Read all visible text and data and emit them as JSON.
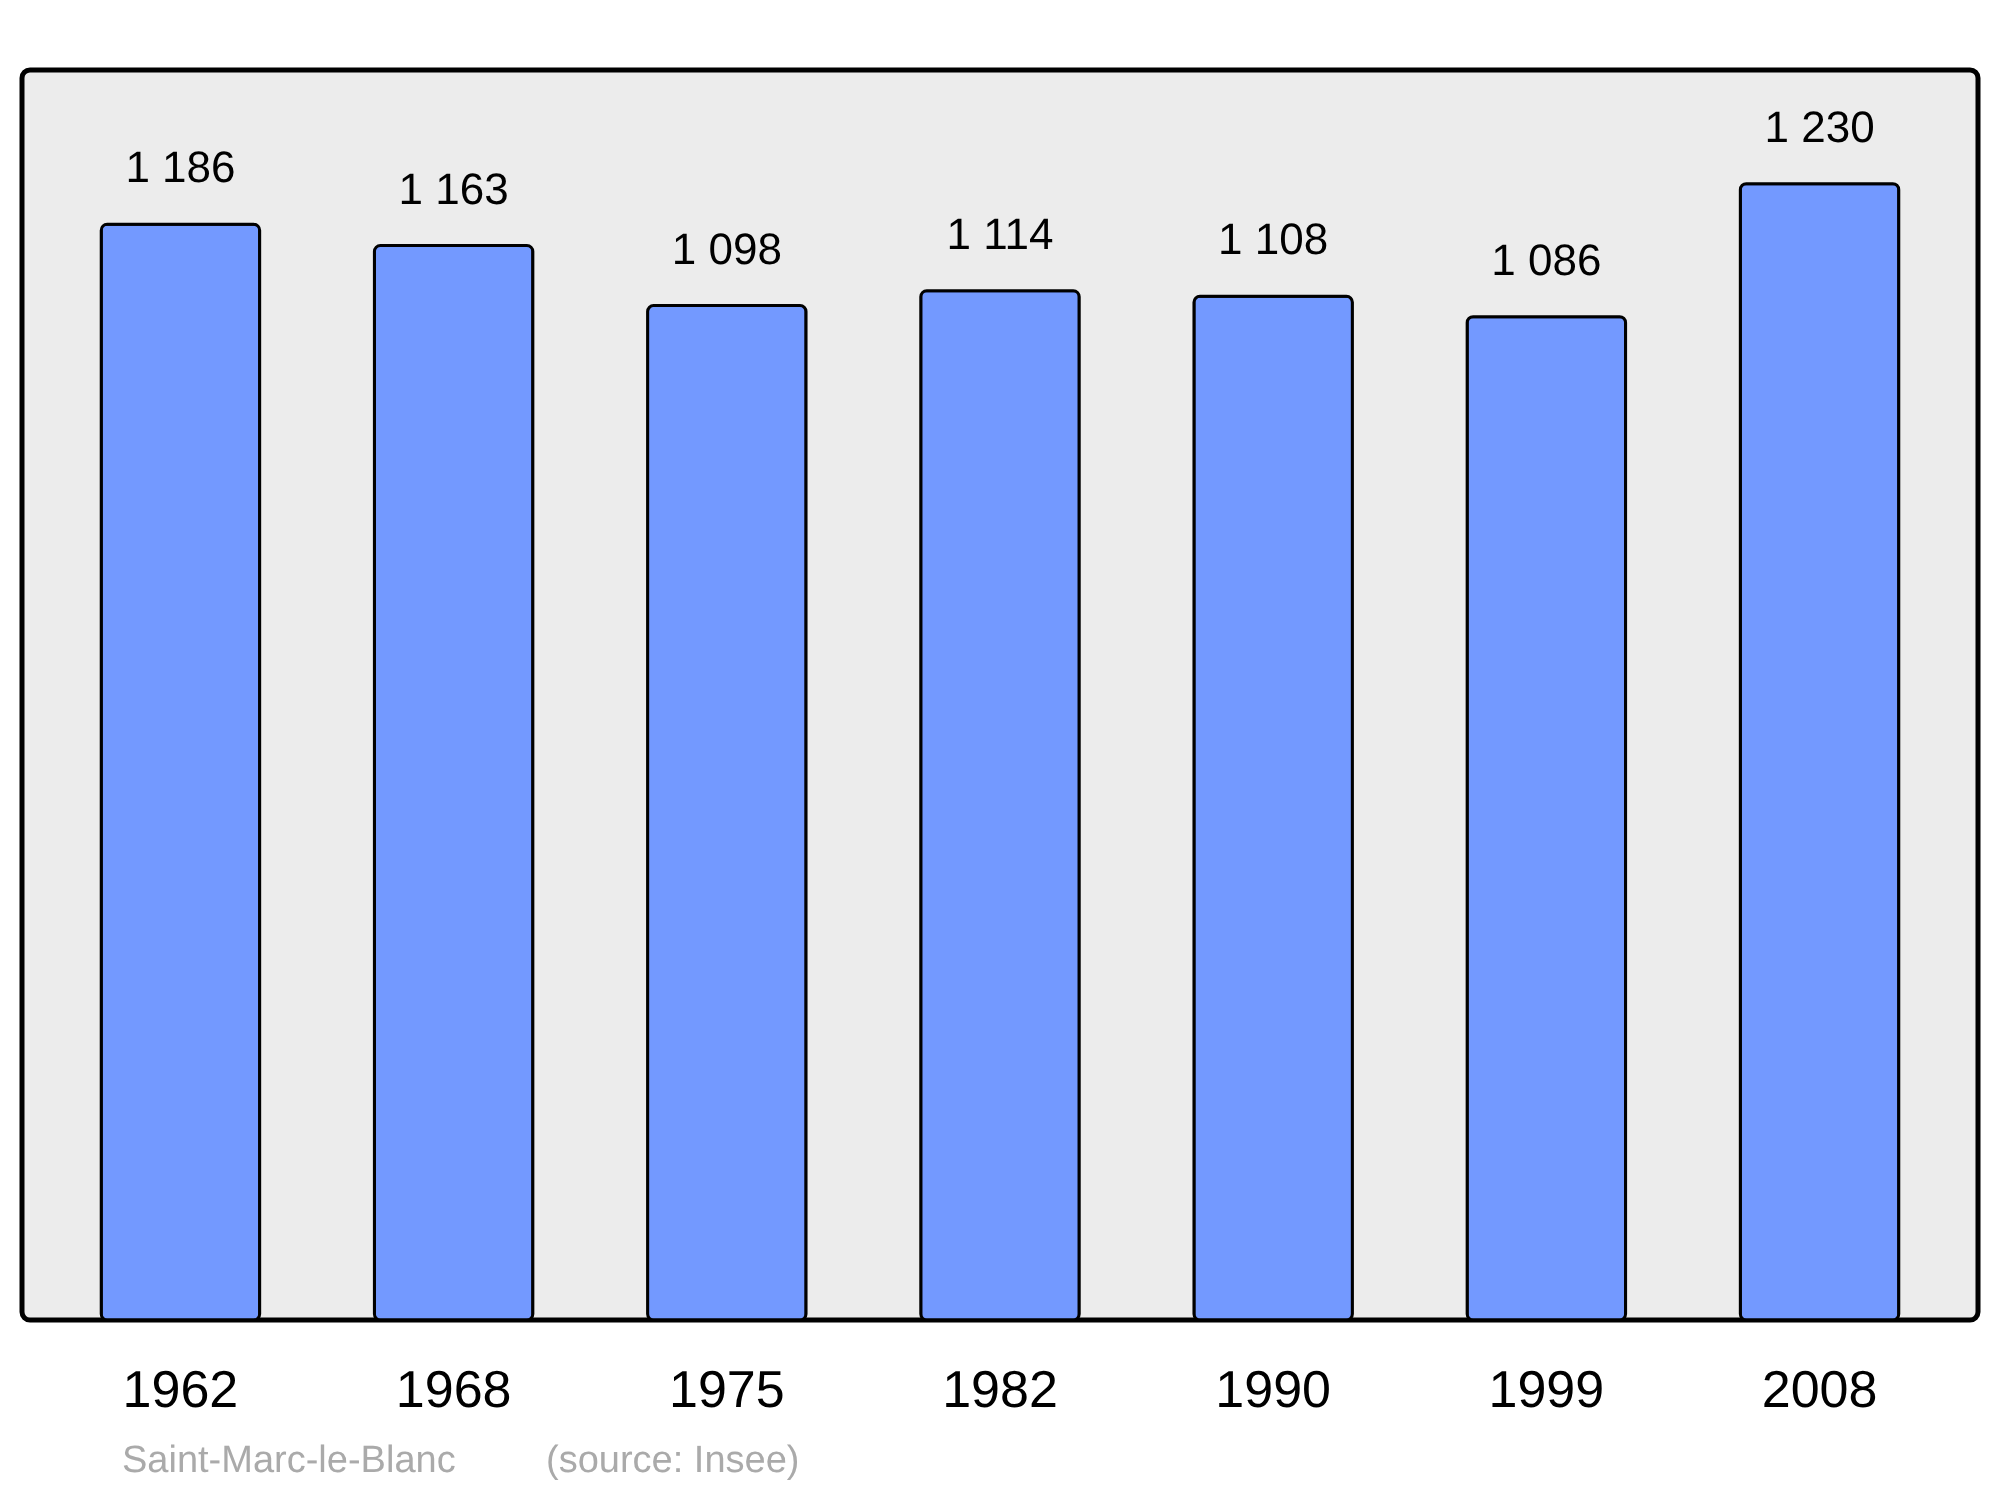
{
  "chart_data": {
    "type": "bar",
    "categories": [
      "1962",
      "1968",
      "1975",
      "1982",
      "1990",
      "1999",
      "2008"
    ],
    "values": [
      1186,
      1163,
      1098,
      1114,
      1108,
      1086,
      1230
    ],
    "value_labels": [
      "1 186",
      "1 163",
      "1 098",
      "1 114",
      "1 108",
      "1 086",
      "1 230"
    ],
    "color": "#7399ff",
    "grid": false,
    "annotations": [
      "Saint-Marc-le-Blanc",
      "(source: Insee)"
    ]
  }
}
